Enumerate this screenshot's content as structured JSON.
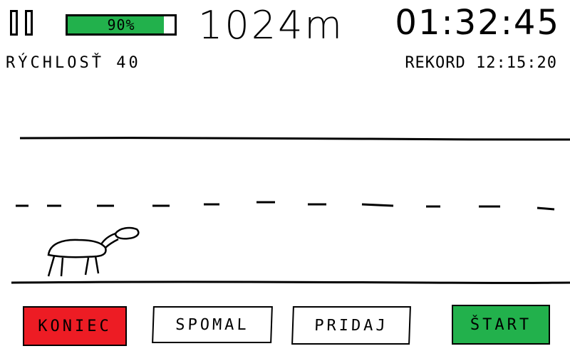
{
  "hud": {
    "battery_label": "90%",
    "battery_level": 0.9,
    "distance": "1024m",
    "timer": "01:32:45",
    "speed": "RÝCHLOSŤ 40",
    "record": "REKORD 12:15:20"
  },
  "buttons": {
    "end": "KONIEC",
    "slow": "SPOMAL",
    "add": "PRIDAJ",
    "start": "ŠTART"
  },
  "colors": {
    "battery": "#22b14c",
    "end_button": "#ed1c24",
    "start_button": "#22b14c"
  },
  "icons": {
    "pause": "pause-icon",
    "runner": "animal-runner-icon"
  }
}
